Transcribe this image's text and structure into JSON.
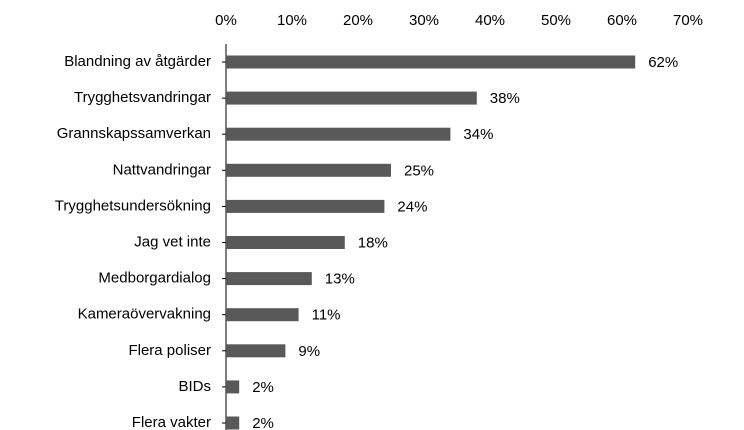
{
  "chart_data": {
    "type": "barh",
    "categories": [
      "Blandning av åtgärder",
      "Trygghetsvandringar",
      "Grannskapssamverkan",
      "Nattvandringar",
      "Trygghetsundersökning",
      "Jag vet inte",
      "Medborgardialog",
      "Kameraövervakning",
      "Flera poliser",
      "BIDs",
      "Flera vakter"
    ],
    "values": [
      62,
      38,
      34,
      25,
      24,
      18,
      13,
      11,
      9,
      2,
      2
    ],
    "value_labels": [
      "62%",
      "38%",
      "34%",
      "25%",
      "24%",
      "18%",
      "13%",
      "11%",
      "9%",
      "2%",
      "2%"
    ],
    "color": "#595959",
    "xlim": [
      0,
      70
    ],
    "xticks": [
      {
        "value": 0,
        "label": "0%"
      },
      {
        "value": 10,
        "label": "10%"
      },
      {
        "value": 20,
        "label": "20%"
      },
      {
        "value": 30,
        "label": "30%"
      },
      {
        "value": 40,
        "label": "40%"
      },
      {
        "value": 50,
        "label": "50%"
      },
      {
        "value": 60,
        "label": "60%"
      },
      {
        "value": 70,
        "label": "70%"
      }
    ],
    "grid": false
  }
}
